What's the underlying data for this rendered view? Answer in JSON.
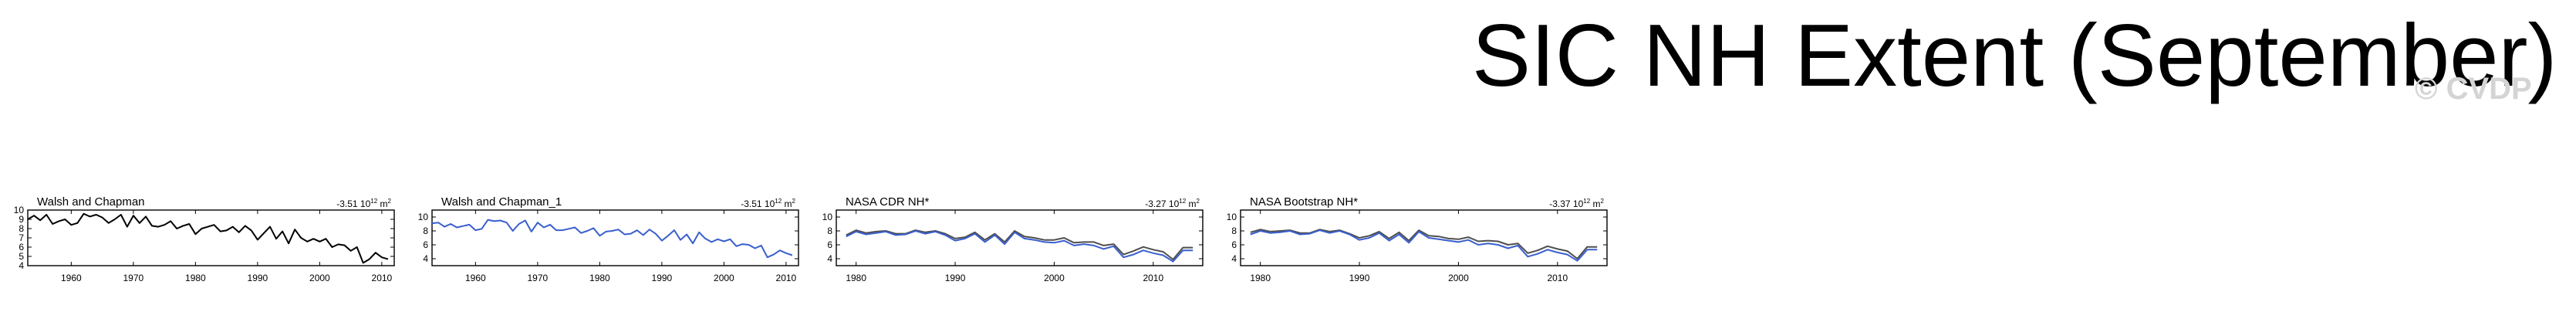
{
  "title": "SIC NH Extent (September)",
  "watermark": "© CVDP",
  "colors": {
    "black_line": "#000000",
    "blue_line": "#3a5fcd",
    "grey_line": "#4f4f4f"
  },
  "chart_data": [
    {
      "type": "line",
      "title": "Walsh and Chapman",
      "trend_value": "-3.51",
      "trend_unit_base": "10",
      "trend_unit_exp": "12",
      "trend_unit_tail": "m",
      "trend_unit_exp2": "2",
      "xlim": [
        1953,
        2012
      ],
      "ylim": [
        4,
        10
      ],
      "xticks": [
        1960,
        1970,
        1980,
        1990,
        2000,
        2010
      ],
      "yticks": [
        4,
        5,
        6,
        7,
        8,
        9,
        10
      ],
      "series": [
        {
          "color": "#000000",
          "x": [
            1953,
            1954,
            1955,
            1956,
            1957,
            1958,
            1959,
            1960,
            1961,
            1962,
            1963,
            1964,
            1965,
            1966,
            1967,
            1968,
            1969,
            1970,
            1971,
            1972,
            1973,
            1974,
            1975,
            1976,
            1977,
            1978,
            1979,
            1980,
            1981,
            1982,
            1983,
            1984,
            1985,
            1986,
            1987,
            1988,
            1989,
            1990,
            1991,
            1992,
            1993,
            1994,
            1995,
            1996,
            1997,
            1998,
            1999,
            2000,
            2001,
            2002,
            2003,
            2004,
            2005,
            2006,
            2007,
            2008,
            2009,
            2010,
            2011
          ],
          "y": [
            9.0,
            9.4,
            8.9,
            9.5,
            8.5,
            8.8,
            9.0,
            8.4,
            8.6,
            9.6,
            9.3,
            9.5,
            9.2,
            8.6,
            9.0,
            9.5,
            8.2,
            9.4,
            8.6,
            9.3,
            8.3,
            8.2,
            8.4,
            8.8,
            8.0,
            8.3,
            8.5,
            7.4,
            8.0,
            8.2,
            8.4,
            7.7,
            7.8,
            8.2,
            7.6,
            8.3,
            7.8,
            6.8,
            7.5,
            8.2,
            6.9,
            7.7,
            6.4,
            7.9,
            7.0,
            6.6,
            6.9,
            6.6,
            6.9,
            6.0,
            6.3,
            6.2,
            5.6,
            6.0,
            4.3,
            4.7,
            5.4,
            4.9,
            4.7
          ]
        }
      ]
    },
    {
      "type": "line",
      "title": "Walsh and Chapman_1",
      "trend_value": "-3.51",
      "trend_unit_base": "10",
      "trend_unit_exp": "12",
      "trend_unit_tail": "m",
      "trend_unit_exp2": "2",
      "xlim": [
        1953,
        2012
      ],
      "ylim": [
        3,
        11
      ],
      "xticks": [
        1960,
        1970,
        1980,
        1990,
        2000,
        2010
      ],
      "yticks": [
        4,
        6,
        8,
        10
      ],
      "series": [
        {
          "color": "#3a5fcd",
          "x": [
            1953,
            1954,
            1955,
            1956,
            1957,
            1958,
            1959,
            1960,
            1961,
            1962,
            1963,
            1964,
            1965,
            1966,
            1967,
            1968,
            1969,
            1970,
            1971,
            1972,
            1973,
            1974,
            1975,
            1976,
            1977,
            1978,
            1979,
            1980,
            1981,
            1982,
            1983,
            1984,
            1985,
            1986,
            1987,
            1988,
            1989,
            1990,
            1991,
            1992,
            1993,
            1994,
            1995,
            1996,
            1997,
            1998,
            1999,
            2000,
            2001,
            2002,
            2003,
            2004,
            2005,
            2006,
            2007,
            2008,
            2009,
            2010,
            2011
          ],
          "y": [
            9.1,
            9.2,
            8.6,
            9.0,
            8.5,
            8.7,
            8.9,
            8.1,
            8.3,
            9.6,
            9.4,
            9.5,
            9.2,
            8.0,
            9.0,
            9.5,
            7.9,
            9.2,
            8.5,
            8.9,
            8.1,
            8.1,
            8.3,
            8.5,
            7.7,
            8.0,
            8.4,
            7.3,
            7.9,
            8.0,
            8.2,
            7.5,
            7.6,
            8.1,
            7.4,
            8.2,
            7.6,
            6.6,
            7.3,
            8.1,
            6.7,
            7.5,
            6.2,
            7.8,
            6.9,
            6.4,
            6.8,
            6.5,
            6.8,
            5.8,
            6.1,
            6.0,
            5.5,
            5.9,
            4.2,
            4.6,
            5.2,
            4.8,
            4.5
          ]
        }
      ]
    },
    {
      "type": "line",
      "title": "NASA CDR NH*",
      "trend_value": "-3.27",
      "trend_unit_base": "10",
      "trend_unit_exp": "12",
      "trend_unit_tail": "m",
      "trend_unit_exp2": "2",
      "xlim": [
        1978,
        2015
      ],
      "ylim": [
        3,
        11
      ],
      "xticks": [
        1980,
        1990,
        2000,
        2010
      ],
      "yticks": [
        4,
        6,
        8,
        10
      ],
      "series": [
        {
          "color": "#4f4f4f",
          "x": [
            1979,
            1980,
            1981,
            1982,
            1983,
            1984,
            1985,
            1986,
            1987,
            1988,
            1989,
            1990,
            1991,
            1992,
            1993,
            1994,
            1995,
            1996,
            1997,
            1998,
            1999,
            2000,
            2001,
            2002,
            2003,
            2004,
            2005,
            2006,
            2007,
            2008,
            2009,
            2010,
            2011,
            2012,
            2013,
            2014
          ],
          "y": [
            7.4,
            8.1,
            7.7,
            7.9,
            8.0,
            7.6,
            7.6,
            8.1,
            7.8,
            8.0,
            7.6,
            6.9,
            7.1,
            7.8,
            6.7,
            7.6,
            6.4,
            8.0,
            7.2,
            7.0,
            6.7,
            6.7,
            7.0,
            6.3,
            6.4,
            6.4,
            5.9,
            6.1,
            4.6,
            5.1,
            5.7,
            5.3,
            5.0,
            3.9,
            5.6,
            5.6
          ]
        },
        {
          "color": "#3a5fcd",
          "x": [
            1979,
            1980,
            1981,
            1982,
            1983,
            1984,
            1985,
            1986,
            1987,
            1988,
            1989,
            1990,
            1991,
            1992,
            1993,
            1994,
            1995,
            1996,
            1997,
            1998,
            1999,
            2000,
            2001,
            2002,
            2003,
            2004,
            2005,
            2006,
            2007,
            2008,
            2009,
            2010,
            2011,
            2012,
            2013,
            2014
          ],
          "y": [
            7.2,
            7.9,
            7.5,
            7.7,
            7.9,
            7.4,
            7.5,
            8.0,
            7.6,
            7.9,
            7.4,
            6.6,
            6.9,
            7.6,
            6.4,
            7.4,
            6.1,
            7.8,
            6.9,
            6.7,
            6.4,
            6.3,
            6.6,
            5.9,
            6.1,
            5.9,
            5.4,
            5.8,
            4.2,
            4.6,
            5.2,
            4.8,
            4.5,
            3.6,
            5.2,
            5.2
          ]
        }
      ]
    },
    {
      "type": "line",
      "title": "NASA Bootstrap NH*",
      "trend_value": "-3.37",
      "trend_unit_base": "10",
      "trend_unit_exp": "12",
      "trend_unit_tail": "m",
      "trend_unit_exp2": "2",
      "xlim": [
        1978,
        2015
      ],
      "ylim": [
        3,
        11
      ],
      "xticks": [
        1980,
        1990,
        2000,
        2010
      ],
      "yticks": [
        4,
        6,
        8,
        10
      ],
      "series": [
        {
          "color": "#4f4f4f",
          "x": [
            1979,
            1980,
            1981,
            1982,
            1983,
            1984,
            1985,
            1986,
            1987,
            1988,
            1989,
            1990,
            1991,
            1992,
            1993,
            1994,
            1995,
            1996,
            1997,
            1998,
            1999,
            2000,
            2001,
            2002,
            2003,
            2004,
            2005,
            2006,
            2007,
            2008,
            2009,
            2010,
            2011,
            2012,
            2013,
            2014
          ],
          "y": [
            7.8,
            8.2,
            7.9,
            8.0,
            8.1,
            7.7,
            7.7,
            8.2,
            7.9,
            8.1,
            7.6,
            7.0,
            7.3,
            7.9,
            6.9,
            7.8,
            6.6,
            8.1,
            7.3,
            7.2,
            6.9,
            6.8,
            7.1,
            6.5,
            6.6,
            6.5,
            6.0,
            6.2,
            4.8,
            5.2,
            5.8,
            5.4,
            5.1,
            4.0,
            5.7,
            5.7
          ]
        },
        {
          "color": "#3a5fcd",
          "x": [
            1979,
            1980,
            1981,
            1982,
            1983,
            1984,
            1985,
            1986,
            1987,
            1988,
            1989,
            1990,
            1991,
            1992,
            1993,
            1994,
            1995,
            1996,
            1997,
            1998,
            1999,
            2000,
            2001,
            2002,
            2003,
            2004,
            2005,
            2006,
            2007,
            2008,
            2009,
            2010,
            2011,
            2012,
            2013,
            2014
          ],
          "y": [
            7.5,
            8.0,
            7.7,
            7.8,
            8.0,
            7.5,
            7.6,
            8.1,
            7.7,
            8.0,
            7.5,
            6.7,
            7.0,
            7.7,
            6.6,
            7.5,
            6.3,
            7.9,
            7.0,
            6.8,
            6.6,
            6.4,
            6.7,
            6.0,
            6.2,
            6.0,
            5.5,
            5.9,
            4.3,
            4.7,
            5.3,
            4.9,
            4.6,
            3.7,
            5.3,
            5.3
          ]
        }
      ]
    }
  ]
}
